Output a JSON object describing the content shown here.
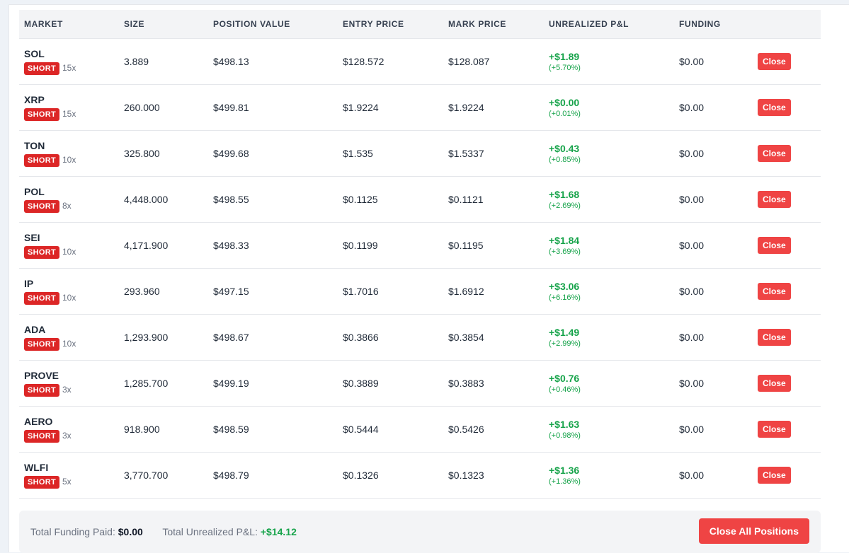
{
  "table": {
    "headers": [
      "MARKET",
      "SIZE",
      "POSITION VALUE",
      "ENTRY PRICE",
      "MARK PRICE",
      "UNREALIZED P&L",
      "FUNDING",
      ""
    ],
    "close_label": "Close",
    "rows": [
      {
        "symbol": "SOL",
        "side": "SHORT",
        "leverage": "15x",
        "size": "3.889",
        "value": "$498.13",
        "entry": "$128.572",
        "mark": "$128.087",
        "pnl": "+$1.89",
        "pnl_pct": "(+5.70%)",
        "funding": "$0.00"
      },
      {
        "symbol": "XRP",
        "side": "SHORT",
        "leverage": "15x",
        "size": "260.000",
        "value": "$499.81",
        "entry": "$1.9224",
        "mark": "$1.9224",
        "pnl": "+$0.00",
        "pnl_pct": "(+0.01%)",
        "funding": "$0.00"
      },
      {
        "symbol": "TON",
        "side": "SHORT",
        "leverage": "10x",
        "size": "325.800",
        "value": "$499.68",
        "entry": "$1.535",
        "mark": "$1.5337",
        "pnl": "+$0.43",
        "pnl_pct": "(+0.85%)",
        "funding": "$0.00"
      },
      {
        "symbol": "POL",
        "side": "SHORT",
        "leverage": "8x",
        "size": "4,448.000",
        "value": "$498.55",
        "entry": "$0.1125",
        "mark": "$0.1121",
        "pnl": "+$1.68",
        "pnl_pct": "(+2.69%)",
        "funding": "$0.00"
      },
      {
        "symbol": "SEI",
        "side": "SHORT",
        "leverage": "10x",
        "size": "4,171.900",
        "value": "$498.33",
        "entry": "$0.1199",
        "mark": "$0.1195",
        "pnl": "+$1.84",
        "pnl_pct": "(+3.69%)",
        "funding": "$0.00"
      },
      {
        "symbol": "IP",
        "side": "SHORT",
        "leverage": "10x",
        "size": "293.960",
        "value": "$497.15",
        "entry": "$1.7016",
        "mark": "$1.6912",
        "pnl": "+$3.06",
        "pnl_pct": "(+6.16%)",
        "funding": "$0.00"
      },
      {
        "symbol": "ADA",
        "side": "SHORT",
        "leverage": "10x",
        "size": "1,293.900",
        "value": "$498.67",
        "entry": "$0.3866",
        "mark": "$0.3854",
        "pnl": "+$1.49",
        "pnl_pct": "(+2.99%)",
        "funding": "$0.00"
      },
      {
        "symbol": "PROVE",
        "side": "SHORT",
        "leverage": "3x",
        "size": "1,285.700",
        "value": "$499.19",
        "entry": "$0.3889",
        "mark": "$0.3883",
        "pnl": "+$0.76",
        "pnl_pct": "(+0.46%)",
        "funding": "$0.00"
      },
      {
        "symbol": "AERO",
        "side": "SHORT",
        "leverage": "3x",
        "size": "918.900",
        "value": "$498.59",
        "entry": "$0.5444",
        "mark": "$0.5426",
        "pnl": "+$1.63",
        "pnl_pct": "(+0.98%)",
        "funding": "$0.00"
      },
      {
        "symbol": "WLFI",
        "side": "SHORT",
        "leverage": "5x",
        "size": "3,770.700",
        "value": "$498.79",
        "entry": "$0.1326",
        "mark": "$0.1323",
        "pnl": "+$1.36",
        "pnl_pct": "(+1.36%)",
        "funding": "$0.00"
      }
    ]
  },
  "footer": {
    "funding_label": "Total Funding Paid:",
    "funding_value": "$0.00",
    "pnl_label": "Total Unrealized P&L:",
    "pnl_value": "+$14.12",
    "close_all_label": "Close All Positions"
  },
  "colors": {
    "short_badge": "#dc2626",
    "profit": "#16a34a",
    "close_button": "#ef4444"
  }
}
